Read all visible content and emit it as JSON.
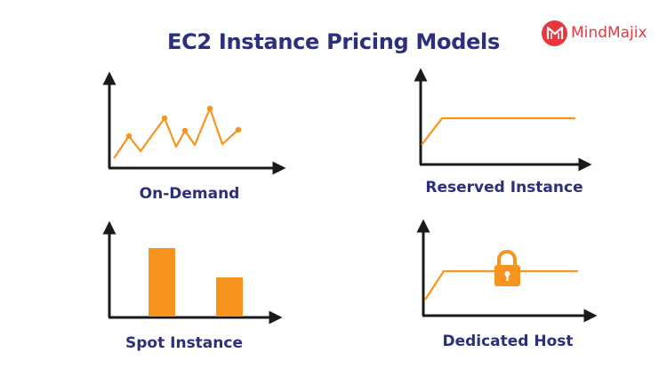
{
  "title": "EC2 Instance Pricing Models",
  "logo": {
    "text": "MindMajix"
  },
  "panels": [
    {
      "label": "On-Demand"
    },
    {
      "label": "Reserved Instance"
    },
    {
      "label": "Spot Instance"
    },
    {
      "label": "Dedicated Host"
    }
  ],
  "colors": {
    "title": "#2b2f7e",
    "accent": "#f7941d",
    "axis": "#1a1a1a",
    "brand": "#e8383d"
  },
  "icons": [
    "line-chart-icon",
    "flat-line-icon",
    "bar-chart-icon",
    "lock-icon"
  ]
}
